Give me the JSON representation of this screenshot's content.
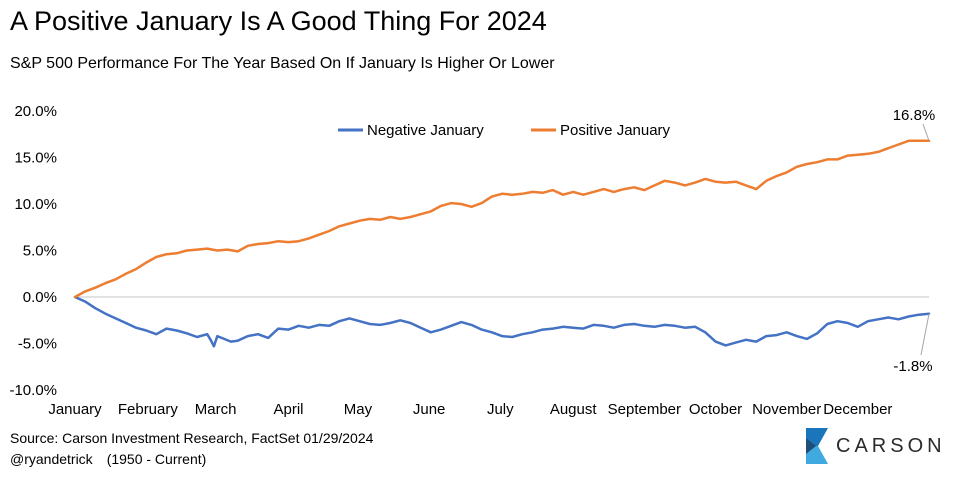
{
  "title": "A Positive January Is A Good Thing For 2024",
  "subtitle": "S&P 500 Performance For The Year Based On If January Is Higher Or Lower",
  "footer": {
    "source": "Source: Carson Investment Research, FactSet 01/29/2024",
    "handle": "@ryandetrick",
    "range": "(1950 - Current)"
  },
  "logo": {
    "text": "CARSON",
    "colors": [
      "#1b75bb",
      "#3fa9e0",
      "#1f4e79"
    ]
  },
  "chart_data": {
    "type": "line",
    "title": "A Positive January Is A Good Thing For 2024",
    "subtitle": "S&P 500 Performance For The Year Based On If January Is Higher Or Lower",
    "xlabel": "",
    "ylabel": "",
    "ylim": [
      -10,
      20
    ],
    "yticks": [
      20,
      15,
      10,
      5,
      0,
      -5,
      -10
    ],
    "ytick_labels": [
      "20.0%",
      "15.0%",
      "10.0%",
      "5.0%",
      "0.0%",
      "-5.0%",
      "-10.0%"
    ],
    "x_tick_labels": [
      "January",
      "February",
      "March",
      "April",
      "May",
      "June",
      "July",
      "August",
      "September",
      "October",
      "November",
      "December"
    ],
    "x_tick_positions": [
      0,
      21.5,
      41.5,
      63,
      83.5,
      104.5,
      125.5,
      147,
      168,
      189,
      210,
      231
    ],
    "x_range": [
      0,
      252
    ],
    "legend_position": "top-center",
    "grid": false,
    "series": [
      {
        "name": "Negative January",
        "color": "#4472c4",
        "x": [
          0,
          3,
          6,
          9,
          12,
          15,
          18,
          21,
          24,
          27,
          30,
          33,
          36,
          39,
          40,
          41,
          42,
          44,
          46,
          48,
          51,
          54,
          57,
          60,
          63,
          66,
          69,
          72,
          75,
          78,
          81,
          84,
          87,
          90,
          93,
          96,
          99,
          102,
          105,
          108,
          111,
          114,
          117,
          120,
          123,
          126,
          129,
          132,
          135,
          138,
          141,
          144,
          147,
          150,
          153,
          156,
          159,
          162,
          165,
          168,
          171,
          174,
          177,
          180,
          183,
          186,
          189,
          192,
          195,
          198,
          201,
          204,
          207,
          210,
          213,
          216,
          219,
          222,
          225,
          228,
          231,
          234,
          237,
          240,
          243,
          246,
          249,
          252
        ],
        "values": [
          0,
          -0.5,
          -1.2,
          -1.8,
          -2.3,
          -2.8,
          -3.3,
          -3.6,
          -4.0,
          -3.4,
          -3.6,
          -3.9,
          -4.3,
          -4.0,
          -4.6,
          -5.3,
          -4.2,
          -4.5,
          -4.8,
          -4.7,
          -4.2,
          -4.0,
          -4.4,
          -3.4,
          -3.5,
          -3.1,
          -3.3,
          -3.0,
          -3.1,
          -2.6,
          -2.3,
          -2.6,
          -2.9,
          -3.0,
          -2.8,
          -2.5,
          -2.8,
          -3.3,
          -3.8,
          -3.5,
          -3.1,
          -2.7,
          -3.0,
          -3.5,
          -3.8,
          -4.2,
          -4.3,
          -4.0,
          -3.8,
          -3.5,
          -3.4,
          -3.2,
          -3.3,
          -3.4,
          -3.0,
          -3.1,
          -3.3,
          -3.0,
          -2.9,
          -3.1,
          -3.2,
          -3.0,
          -3.1,
          -3.3,
          -3.2,
          -3.8,
          -4.8,
          -5.2,
          -4.9,
          -4.6,
          -4.8,
          -4.2,
          -4.1,
          -3.8,
          -4.2,
          -4.5,
          -3.9,
          -2.9,
          -2.6,
          -2.8,
          -3.2,
          -2.6,
          -2.4,
          -2.2,
          -2.4,
          -2.1,
          -1.9,
          -1.8
        ]
      },
      {
        "name": "Positive January",
        "color": "#ed7d31",
        "x": [
          0,
          3,
          6,
          9,
          12,
          15,
          18,
          21,
          24,
          27,
          30,
          33,
          36,
          39,
          42,
          45,
          48,
          51,
          54,
          57,
          60,
          63,
          66,
          69,
          72,
          75,
          78,
          81,
          84,
          87,
          90,
          93,
          96,
          99,
          102,
          105,
          108,
          111,
          114,
          117,
          120,
          123,
          126,
          129,
          132,
          135,
          138,
          141,
          144,
          147,
          150,
          153,
          156,
          159,
          162,
          165,
          168,
          171,
          174,
          177,
          180,
          183,
          186,
          189,
          192,
          195,
          198,
          201,
          204,
          207,
          210,
          213,
          216,
          219,
          222,
          225,
          228,
          231,
          234,
          237,
          240,
          243,
          246,
          249,
          252
        ],
        "values": [
          0,
          0.6,
          1.0,
          1.5,
          1.9,
          2.5,
          3.0,
          3.7,
          4.3,
          4.6,
          4.7,
          5.0,
          5.1,
          5.2,
          5.0,
          5.1,
          4.9,
          5.5,
          5.7,
          5.8,
          6.0,
          5.9,
          6.0,
          6.3,
          6.7,
          7.1,
          7.6,
          7.9,
          8.2,
          8.4,
          8.3,
          8.6,
          8.4,
          8.6,
          8.9,
          9.2,
          9.8,
          10.1,
          10.0,
          9.7,
          10.1,
          10.8,
          11.1,
          11.0,
          11.1,
          11.3,
          11.2,
          11.5,
          11.0,
          11.3,
          11.0,
          11.3,
          11.6,
          11.3,
          11.6,
          11.8,
          11.5,
          12.0,
          12.5,
          12.3,
          12.0,
          12.3,
          12.7,
          12.4,
          12.3,
          12.4,
          12.0,
          11.6,
          12.5,
          13.0,
          13.4,
          14.0,
          14.3,
          14.5,
          14.8,
          14.8,
          15.2,
          15.3,
          15.4,
          15.6,
          16.0,
          16.4,
          16.8,
          16.8,
          16.8
        ],
        "end_label": "16.8%"
      }
    ],
    "annotations": [
      {
        "text": "16.8%",
        "series": "Positive January"
      },
      {
        "text": "-1.8%",
        "series": "Negative January"
      }
    ]
  }
}
